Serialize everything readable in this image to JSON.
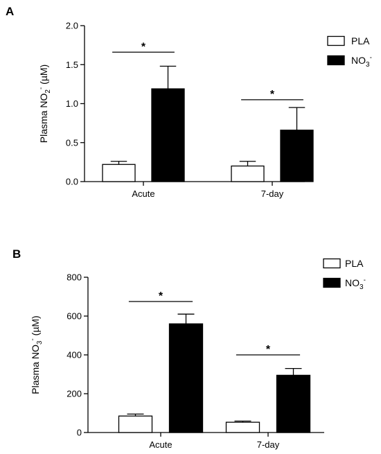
{
  "colors": {
    "pla_fill": "#ffffff",
    "no3_fill": "#000000",
    "stroke": "#000000"
  },
  "chart_data": [
    {
      "type": "bar",
      "panel_label": "A",
      "ylabel_main": "Plasma NO",
      "ylabel_sub": "2",
      "ylabel_sup": "-",
      "ylabel_unit": " (µM)",
      "categories": [
        "Acute",
        "7-day"
      ],
      "ylim": [
        0,
        2.0
      ],
      "yticks": [
        "0.0",
        "0.5",
        "1.0",
        "1.5",
        "2.0"
      ],
      "ytick_values": [
        0,
        0.5,
        1.0,
        1.5,
        2.0
      ],
      "series": [
        {
          "name": "PLA",
          "values": [
            0.22,
            0.2
          ],
          "errors": [
            0.04,
            0.06
          ]
        },
        {
          "name": "NO3-",
          "values": [
            1.19,
            0.66
          ],
          "errors": [
            0.29,
            0.29
          ]
        }
      ],
      "legend": {
        "placement": "right",
        "pla": "PLA",
        "no3_main": "NO",
        "no3_sub": "3",
        "no3_sup": "-"
      },
      "annotations": [
        {
          "category": "Acute",
          "text": "*",
          "y": 1.66
        },
        {
          "category": "7-day",
          "text": "*",
          "y": 1.05
        }
      ]
    },
    {
      "type": "bar",
      "panel_label": "B",
      "ylabel_main": "Plasma NO",
      "ylabel_sub": "3",
      "ylabel_sup": "-",
      "ylabel_unit": " (µM)",
      "categories": [
        "Acute",
        "7-day"
      ],
      "ylim": [
        0,
        800
      ],
      "yticks": [
        "0",
        "200",
        "400",
        "600",
        "800"
      ],
      "ytick_values": [
        0,
        200,
        400,
        600,
        800
      ],
      "series": [
        {
          "name": "PLA",
          "values": [
            85,
            53
          ],
          "errors": [
            10,
            6
          ]
        },
        {
          "name": "NO3-",
          "values": [
            560,
            295
          ],
          "errors": [
            50,
            35
          ]
        }
      ],
      "legend": {
        "placement": "top-right",
        "pla": "PLA",
        "no3_main": "NO",
        "no3_sub": "3",
        "no3_sup": "-"
      },
      "annotations": [
        {
          "category": "Acute",
          "text": "*",
          "y": 675
        },
        {
          "category": "7-day",
          "text": "*",
          "y": 400
        }
      ]
    }
  ]
}
